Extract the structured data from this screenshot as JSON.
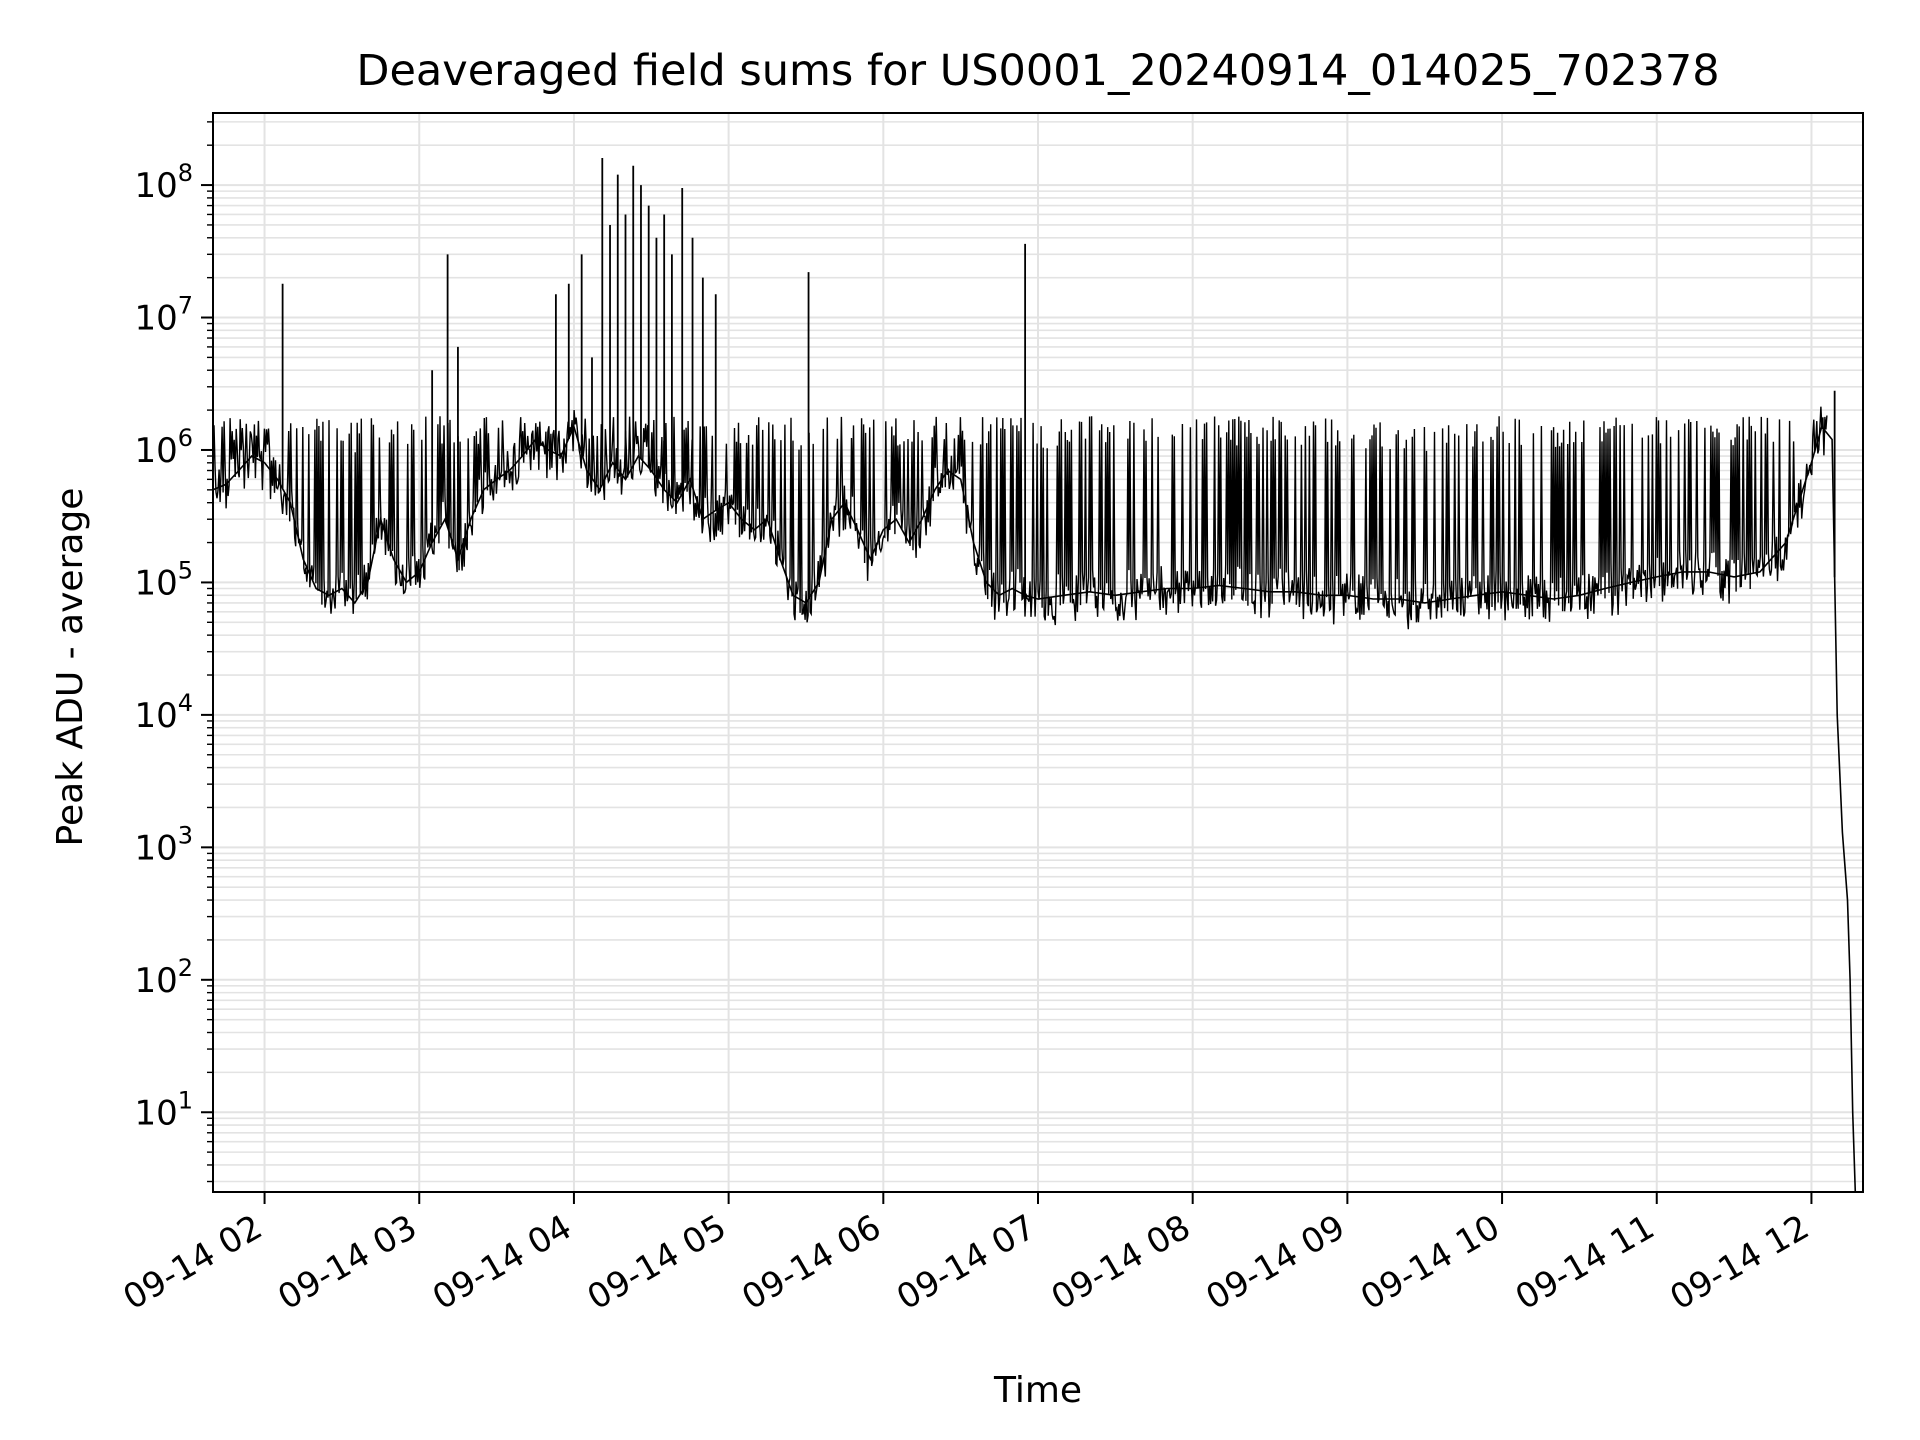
{
  "chart_data": {
    "type": "line",
    "title": "Deaveraged field sums for US0001_20240914_014025_702378",
    "xlabel": "Time",
    "ylabel": "Peak ADU - average",
    "y_scale": "log",
    "ylim": [
      2.5,
      350000000
    ],
    "xlim": [
      "2024-09-14 01:40",
      "2024-09-14 12:20"
    ],
    "grid": true,
    "line_color": "#000000",
    "grid_color": "#e3e3e3",
    "x_ticks": [
      {
        "label": "09-14 02",
        "time": "2024-09-14 02:00"
      },
      {
        "label": "09-14 03",
        "time": "2024-09-14 03:00"
      },
      {
        "label": "09-14 04",
        "time": "2024-09-14 04:00"
      },
      {
        "label": "09-14 05",
        "time": "2024-09-14 05:00"
      },
      {
        "label": "09-14 06",
        "time": "2024-09-14 06:00"
      },
      {
        "label": "09-14 07",
        "time": "2024-09-14 07:00"
      },
      {
        "label": "09-14 08",
        "time": "2024-09-14 08:00"
      },
      {
        "label": "09-14 09",
        "time": "2024-09-14 09:00"
      },
      {
        "label": "09-14 10",
        "time": "2024-09-14 10:00"
      },
      {
        "label": "09-14 11",
        "time": "2024-09-14 11:00"
      },
      {
        "label": "09-14 12",
        "time": "2024-09-14 12:00"
      }
    ],
    "y_ticks": [
      {
        "base": "10",
        "exp": "1",
        "value": 10
      },
      {
        "base": "10",
        "exp": "2",
        "value": 100
      },
      {
        "base": "10",
        "exp": "3",
        "value": 1000
      },
      {
        "base": "10",
        "exp": "4",
        "value": 10000
      },
      {
        "base": "10",
        "exp": "5",
        "value": 100000
      },
      {
        "base": "10",
        "exp": "6",
        "value": 1000000
      },
      {
        "base": "10",
        "exp": "7",
        "value": 10000000
      },
      {
        "base": "10",
        "exp": "8",
        "value": 100000000
      }
    ],
    "series": [
      {
        "x": [
          "2024-09-14 01:40",
          "2024-09-14 01:45",
          "2024-09-14 01:50",
          "2024-09-14 01:55",
          "2024-09-14 02:00",
          "2024-09-14 02:05",
          "2024-09-14 02:10",
          "2024-09-14 02:15",
          "2024-09-14 02:20",
          "2024-09-14 02:25",
          "2024-09-14 02:30",
          "2024-09-14 02:35",
          "2024-09-14 02:40",
          "2024-09-14 02:45",
          "2024-09-14 02:50",
          "2024-09-14 02:55",
          "2024-09-14 03:00",
          "2024-09-14 03:05",
          "2024-09-14 03:10",
          "2024-09-14 03:15",
          "2024-09-14 03:20",
          "2024-09-14 03:25",
          "2024-09-14 03:30",
          "2024-09-14 03:35",
          "2024-09-14 03:40",
          "2024-09-14 03:45",
          "2024-09-14 03:50",
          "2024-09-14 03:55",
          "2024-09-14 04:00",
          "2024-09-14 04:05",
          "2024-09-14 04:10",
          "2024-09-14 04:15",
          "2024-09-14 04:20",
          "2024-09-14 04:25",
          "2024-09-14 04:30",
          "2024-09-14 04:35",
          "2024-09-14 04:40",
          "2024-09-14 04:45",
          "2024-09-14 04:50",
          "2024-09-14 04:55",
          "2024-09-14 05:00",
          "2024-09-14 05:05",
          "2024-09-14 05:10",
          "2024-09-14 05:15",
          "2024-09-14 05:20",
          "2024-09-14 05:25",
          "2024-09-14 05:30",
          "2024-09-14 05:35",
          "2024-09-14 05:40",
          "2024-09-14 05:45",
          "2024-09-14 05:50",
          "2024-09-14 05:55",
          "2024-09-14 06:00",
          "2024-09-14 06:05",
          "2024-09-14 06:10",
          "2024-09-14 06:15",
          "2024-09-14 06:20",
          "2024-09-14 06:25",
          "2024-09-14 06:30",
          "2024-09-14 06:35",
          "2024-09-14 06:40",
          "2024-09-14 06:45",
          "2024-09-14 06:50",
          "2024-09-14 06:55",
          "2024-09-14 07:00",
          "2024-09-14 07:10",
          "2024-09-14 07:20",
          "2024-09-14 07:30",
          "2024-09-14 07:40",
          "2024-09-14 07:50",
          "2024-09-14 08:00",
          "2024-09-14 08:10",
          "2024-09-14 08:20",
          "2024-09-14 08:30",
          "2024-09-14 08:40",
          "2024-09-14 08:50",
          "2024-09-14 09:00",
          "2024-09-14 09:10",
          "2024-09-14 09:20",
          "2024-09-14 09:30",
          "2024-09-14 09:40",
          "2024-09-14 09:50",
          "2024-09-14 10:00",
          "2024-09-14 10:10",
          "2024-09-14 10:20",
          "2024-09-14 10:30",
          "2024-09-14 10:40",
          "2024-09-14 10:50",
          "2024-09-14 11:00",
          "2024-09-14 11:10",
          "2024-09-14 11:20",
          "2024-09-14 11:30",
          "2024-09-14 11:40",
          "2024-09-14 11:50",
          "2024-09-14 12:00",
          "2024-09-14 12:04",
          "2024-09-14 12:08",
          "2024-09-14 12:10",
          "2024-09-14 12:12",
          "2024-09-14 12:14",
          "2024-09-14 12:15",
          "2024-09-14 12:16",
          "2024-09-14 12:17"
        ],
        "y": [
          500000,
          550000,
          700000,
          900000,
          800000,
          600000,
          400000,
          150000,
          90000,
          80000,
          90000,
          70000,
          100000,
          300000,
          150000,
          100000,
          120000,
          200000,
          300000,
          150000,
          300000,
          500000,
          600000,
          700000,
          900000,
          1200000,
          1000000,
          900000,
          1500000,
          700000,
          500000,
          800000,
          600000,
          900000,
          700000,
          500000,
          400000,
          600000,
          300000,
          350000,
          400000,
          300000,
          250000,
          300000,
          150000,
          80000,
          70000,
          100000,
          300000,
          400000,
          250000,
          150000,
          250000,
          300000,
          200000,
          300000,
          500000,
          700000,
          600000,
          200000,
          100000,
          80000,
          90000,
          80000,
          75000,
          80000,
          85000,
          80000,
          85000,
          90000,
          90000,
          95000,
          90000,
          85000,
          85000,
          80000,
          80000,
          75000,
          75000,
          70000,
          75000,
          80000,
          85000,
          80000,
          75000,
          80000,
          90000,
          100000,
          110000,
          120000,
          120000,
          110000,
          120000,
          200000,
          800000,
          1500000,
          1200000,
          10000,
          1300,
          400,
          100,
          10,
          2.5
        ],
        "spikes": [
          {
            "x": "2024-09-14 02:07",
            "y": 18000000
          },
          {
            "x": "2024-09-14 03:05",
            "y": 4000000
          },
          {
            "x": "2024-09-14 03:11",
            "y": 30000000
          },
          {
            "x": "2024-09-14 03:15",
            "y": 6000000
          },
          {
            "x": "2024-09-14 03:53",
            "y": 15000000
          },
          {
            "x": "2024-09-14 03:58",
            "y": 18000000
          },
          {
            "x": "2024-09-14 04:03",
            "y": 30000000
          },
          {
            "x": "2024-09-14 04:07",
            "y": 5000000
          },
          {
            "x": "2024-09-14 04:11",
            "y": 160000000
          },
          {
            "x": "2024-09-14 04:14",
            "y": 50000000
          },
          {
            "x": "2024-09-14 04:17",
            "y": 120000000
          },
          {
            "x": "2024-09-14 04:20",
            "y": 60000000
          },
          {
            "x": "2024-09-14 04:23",
            "y": 140000000
          },
          {
            "x": "2024-09-14 04:26",
            "y": 100000000
          },
          {
            "x": "2024-09-14 04:29",
            "y": 70000000
          },
          {
            "x": "2024-09-14 04:32",
            "y": 40000000
          },
          {
            "x": "2024-09-14 04:35",
            "y": 60000000
          },
          {
            "x": "2024-09-14 04:38",
            "y": 30000000
          },
          {
            "x": "2024-09-14 04:42",
            "y": 95000000
          },
          {
            "x": "2024-09-14 04:46",
            "y": 40000000
          },
          {
            "x": "2024-09-14 04:50",
            "y": 20000000
          },
          {
            "x": "2024-09-14 04:55",
            "y": 15000000
          },
          {
            "x": "2024-09-14 05:31",
            "y": 22000000
          },
          {
            "x": "2024-09-14 06:55",
            "y": 36000000
          },
          {
            "x": "2024-09-14 12:09",
            "y": 2800000
          }
        ]
      }
    ]
  }
}
